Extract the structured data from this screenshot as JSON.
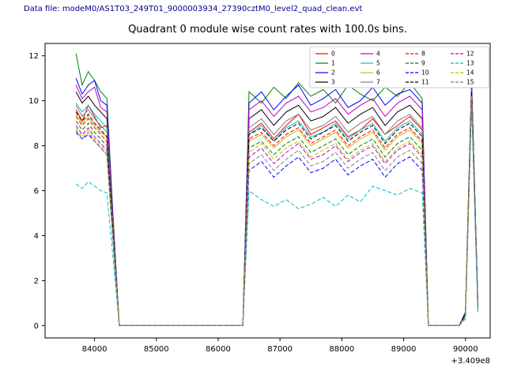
{
  "header": {
    "datafile_label": "Data file: modeM0/AS1T03_249T01_9000003934_27390cztM0_level2_quad_clean.evt"
  },
  "chart_data": {
    "type": "line",
    "title": "Quadrant 0 module wise count rates with 100.0s bins.",
    "xlabel": "",
    "ylabel": "",
    "x_offset_label": "+3.409e8",
    "xlim": [
      83200,
      90400
    ],
    "ylim": [
      -0.55,
      12.55
    ],
    "xticks": [
      84000,
      85000,
      86000,
      87000,
      88000,
      89000,
      90000
    ],
    "yticks": [
      0,
      2,
      4,
      6,
      8,
      10,
      12
    ],
    "grid": false,
    "legend_position": "upper right",
    "legend_columns": 4,
    "x": [
      83700,
      83800,
      83900,
      84000,
      84100,
      84200,
      84300,
      84400,
      84600,
      85000,
      85500,
      86000,
      86300,
      86400,
      86500,
      86700,
      86900,
      87100,
      87300,
      87500,
      87700,
      87900,
      88100,
      88300,
      88500,
      88700,
      88900,
      89100,
      89300,
      89400,
      89500,
      89700,
      89900,
      90000,
      90100,
      90200
    ],
    "series": [
      {
        "name": "0",
        "color": "#ff0000",
        "dash": false,
        "values": [
          9.6,
          9.1,
          9.8,
          9.3,
          8.8,
          8.9,
          4.2,
          0,
          0,
          0,
          0,
          0,
          0,
          0,
          8.6,
          9.0,
          8.3,
          8.9,
          9.4,
          8.5,
          8.8,
          9.1,
          8.4,
          8.7,
          9.2,
          8.5,
          8.9,
          9.3,
          8.7,
          0,
          0,
          0,
          0,
          0.5,
          10.5,
          0.9
        ]
      },
      {
        "name": "1",
        "color": "#008000",
        "dash": false,
        "values": [
          12.1,
          10.7,
          11.3,
          10.9,
          10.4,
          10.1,
          4.9,
          0,
          0,
          0,
          0,
          0,
          0,
          0,
          10.4,
          9.9,
          10.6,
          10.1,
          10.8,
          10.2,
          10.5,
          9.9,
          10.7,
          10.3,
          10.0,
          10.6,
          10.2,
          10.8,
          10.1,
          0,
          0,
          0,
          0,
          0.6,
          11.0,
          1.0
        ]
      },
      {
        "name": "2",
        "color": "#0000ff",
        "dash": false,
        "values": [
          11.0,
          10.3,
          10.7,
          10.9,
          10.0,
          9.8,
          4.7,
          0,
          0,
          0,
          0,
          0,
          0,
          0,
          9.9,
          10.4,
          9.6,
          10.2,
          10.7,
          9.8,
          10.1,
          10.5,
          9.7,
          10.0,
          10.6,
          9.8,
          10.3,
          10.5,
          9.9,
          0,
          0,
          0,
          0,
          0.6,
          10.9,
          1.0
        ]
      },
      {
        "name": "3",
        "color": "#000000",
        "dash": false,
        "values": [
          10.4,
          9.9,
          10.2,
          9.8,
          9.5,
          9.2,
          4.5,
          0,
          0,
          0,
          0,
          0,
          0,
          0,
          9.2,
          9.6,
          8.9,
          9.5,
          9.8,
          9.1,
          9.3,
          9.7,
          9.0,
          9.4,
          9.7,
          8.9,
          9.5,
          9.8,
          9.2,
          0,
          0,
          0,
          0,
          0.5,
          10.6,
          0.9
        ]
      },
      {
        "name": "4",
        "color": "#bf00bf",
        "dash": false,
        "values": [
          10.7,
          10.1,
          10.4,
          10.6,
          9.7,
          9.5,
          4.6,
          0,
          0,
          0,
          0,
          0,
          0,
          0,
          9.6,
          10.0,
          9.3,
          9.9,
          10.2,
          9.5,
          9.7,
          10.1,
          9.4,
          9.8,
          10.1,
          9.3,
          9.9,
          10.2,
          9.6,
          0,
          0,
          0,
          0,
          0.5,
          10.8,
          1.0
        ]
      },
      {
        "name": "5",
        "color": "#00bfbf",
        "dash": false,
        "values": [
          9.9,
          9.5,
          9.8,
          9.4,
          9.1,
          8.8,
          4.3,
          0,
          0,
          0,
          0,
          0,
          0,
          0,
          8.5,
          8.9,
          8.2,
          8.8,
          9.1,
          8.4,
          8.6,
          9.0,
          8.3,
          8.7,
          9.0,
          8.2,
          8.8,
          9.1,
          8.5,
          0,
          0,
          0,
          0,
          0.5,
          10.4,
          0.9
        ]
      },
      {
        "name": "6",
        "color": "#bfbf00",
        "dash": false,
        "values": [
          9.4,
          9.0,
          9.3,
          8.9,
          8.6,
          8.4,
          4.1,
          0,
          0,
          0,
          0,
          0,
          0,
          0,
          8.2,
          8.5,
          7.9,
          8.4,
          8.7,
          8.0,
          8.3,
          8.6,
          7.9,
          8.3,
          8.6,
          7.8,
          8.4,
          8.7,
          8.1,
          0,
          0,
          0,
          0,
          0.5,
          10.3,
          0.8
        ]
      },
      {
        "name": "7",
        "color": "#7f7f7f",
        "dash": false,
        "values": [
          9.8,
          9.3,
          9.6,
          9.2,
          8.9,
          8.6,
          4.2,
          0,
          0,
          0,
          0,
          0,
          0,
          0,
          8.8,
          9.2,
          8.5,
          9.1,
          9.4,
          8.7,
          8.9,
          9.3,
          8.6,
          9.0,
          9.3,
          8.5,
          9.1,
          9.4,
          8.8,
          0,
          0,
          0,
          0,
          0.5,
          10.5,
          0.9
        ]
      },
      {
        "name": "8",
        "color": "#ff0000",
        "dash": true,
        "values": [
          9.3,
          8.9,
          9.2,
          8.8,
          8.5,
          8.2,
          4.0,
          0,
          0,
          0,
          0,
          0,
          0,
          0,
          8.3,
          8.6,
          8.0,
          8.5,
          8.8,
          8.1,
          8.4,
          8.7,
          8.0,
          8.4,
          8.7,
          7.9,
          8.5,
          8.8,
          8.2,
          0,
          0,
          0,
          0,
          0.5,
          10.3,
          0.8
        ]
      },
      {
        "name": "9",
        "color": "#008000",
        "dash": true,
        "values": [
          9.1,
          8.7,
          9.0,
          8.6,
          8.3,
          8.0,
          3.9,
          0,
          0,
          0,
          0,
          0,
          0,
          0,
          7.9,
          8.2,
          7.6,
          8.1,
          8.4,
          7.7,
          8.0,
          8.3,
          7.6,
          8.0,
          8.3,
          7.5,
          8.1,
          8.4,
          7.8,
          0,
          0,
          0,
          0,
          0.5,
          10.2,
          0.8
        ]
      },
      {
        "name": "10",
        "color": "#0000ff",
        "dash": true,
        "values": [
          8.6,
          8.3,
          8.5,
          8.2,
          7.9,
          7.6,
          3.7,
          0,
          0,
          0,
          0,
          0,
          0,
          0,
          6.9,
          7.3,
          6.6,
          7.1,
          7.5,
          6.8,
          7.0,
          7.4,
          6.7,
          7.1,
          7.4,
          6.6,
          7.2,
          7.5,
          6.9,
          0,
          0,
          0,
          0,
          0.4,
          10.0,
          0.7
        ]
      },
      {
        "name": "11",
        "color": "#000000",
        "dash": true,
        "values": [
          9.5,
          9.1,
          9.4,
          9.0,
          8.7,
          8.4,
          4.1,
          0,
          0,
          0,
          0,
          0,
          0,
          0,
          8.5,
          8.8,
          8.2,
          8.7,
          9.0,
          8.3,
          8.6,
          8.9,
          8.2,
          8.6,
          8.9,
          8.1,
          8.7,
          9.0,
          8.4,
          0,
          0,
          0,
          0,
          0.5,
          10.4,
          0.9
        ]
      },
      {
        "name": "12",
        "color": "#bf00bf",
        "dash": true,
        "values": [
          8.9,
          8.5,
          8.8,
          8.4,
          8.1,
          7.8,
          3.8,
          0,
          0,
          0,
          0,
          0,
          0,
          0,
          7.5,
          7.9,
          7.2,
          7.7,
          8.1,
          7.4,
          7.6,
          8.0,
          7.3,
          7.7,
          8.0,
          7.2,
          7.8,
          8.1,
          7.5,
          0,
          0,
          0,
          0,
          0.4,
          10.1,
          0.8
        ]
      },
      {
        "name": "13",
        "color": "#00bfbf",
        "dash": true,
        "values": [
          6.3,
          6.1,
          6.4,
          6.2,
          6.0,
          5.9,
          3.0,
          0,
          0,
          0,
          0,
          0,
          0,
          0,
          6.0,
          5.6,
          5.3,
          5.6,
          5.2,
          5.4,
          5.7,
          5.3,
          5.8,
          5.5,
          6.2,
          6.0,
          5.8,
          6.1,
          5.9,
          0,
          0,
          0,
          0,
          0.3,
          9.8,
          0.6
        ]
      },
      {
        "name": "14",
        "color": "#bfbf00",
        "dash": true,
        "values": [
          8.8,
          8.4,
          8.7,
          8.3,
          8.0,
          7.7,
          3.8,
          0,
          0,
          0,
          0,
          0,
          0,
          0,
          7.7,
          8.1,
          7.4,
          7.9,
          8.2,
          7.5,
          7.8,
          8.1,
          7.4,
          7.8,
          8.1,
          7.3,
          7.9,
          8.2,
          7.6,
          0,
          0,
          0,
          0,
          0.4,
          10.2,
          0.8
        ]
      },
      {
        "name": "15",
        "color": "#7f7f7f",
        "dash": true,
        "values": [
          8.7,
          8.3,
          8.6,
          8.2,
          7.9,
          7.6,
          3.7,
          0,
          0,
          0,
          0,
          0,
          0,
          0,
          7.2,
          7.6,
          6.9,
          7.4,
          7.8,
          7.1,
          7.3,
          7.7,
          7.0,
          7.4,
          7.7,
          6.9,
          7.5,
          7.8,
          7.2,
          0,
          0,
          0,
          0,
          0.4,
          10.0,
          0.7
        ]
      }
    ]
  }
}
